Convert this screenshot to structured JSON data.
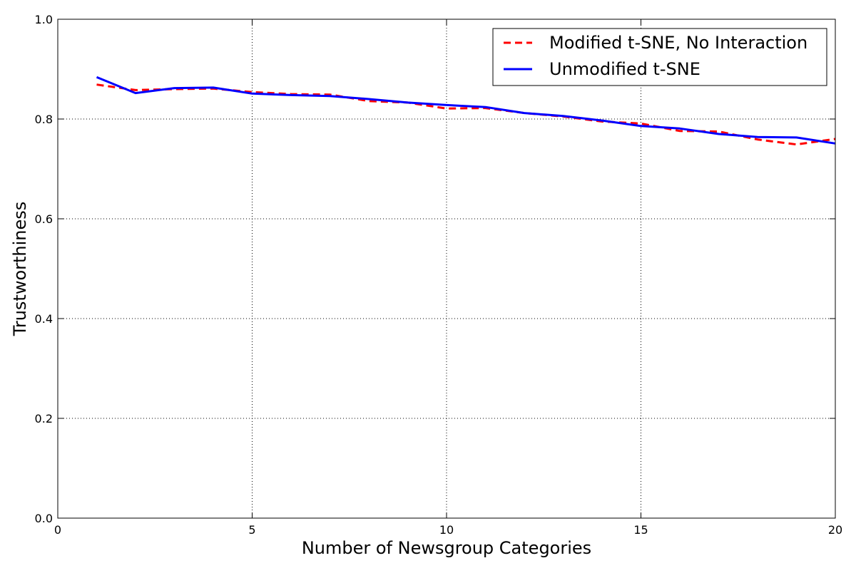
{
  "chart_data": {
    "type": "line",
    "title": "",
    "xlabel": "Number of Newsgroup Categories",
    "ylabel": "Trustworthiness",
    "xlim": [
      0,
      20
    ],
    "ylim": [
      0.0,
      1.0
    ],
    "xticks": [
      0,
      5,
      10,
      15,
      20
    ],
    "xtick_labels": [
      "0",
      "5",
      "10",
      "15",
      "20"
    ],
    "yticks": [
      0.0,
      0.2,
      0.4,
      0.6,
      0.8,
      1.0
    ],
    "ytick_labels": [
      "0.0",
      "0.2",
      "0.4",
      "0.6",
      "0.8",
      "1.0"
    ],
    "grid": true,
    "legend_position": "top-right",
    "x": [
      1,
      2,
      3,
      4,
      5,
      6,
      7,
      8,
      9,
      10,
      11,
      12,
      13,
      14,
      15,
      16,
      17,
      18,
      19,
      20
    ],
    "series": [
      {
        "name": "Modified t-SNE, No Interaction",
        "color": "#ff0000",
        "style": "dashed",
        "values": [
          0.869,
          0.858,
          0.86,
          0.861,
          0.854,
          0.85,
          0.849,
          0.836,
          0.833,
          0.821,
          0.822,
          0.812,
          0.805,
          0.795,
          0.791,
          0.776,
          0.775,
          0.759,
          0.749,
          0.76
        ]
      },
      {
        "name": "Unmodified t-SNE",
        "color": "#0000ff",
        "style": "solid",
        "values": [
          0.884,
          0.852,
          0.862,
          0.863,
          0.851,
          0.848,
          0.846,
          0.84,
          0.833,
          0.828,
          0.824,
          0.812,
          0.806,
          0.797,
          0.786,
          0.781,
          0.77,
          0.764,
          0.763,
          0.751
        ]
      }
    ]
  }
}
